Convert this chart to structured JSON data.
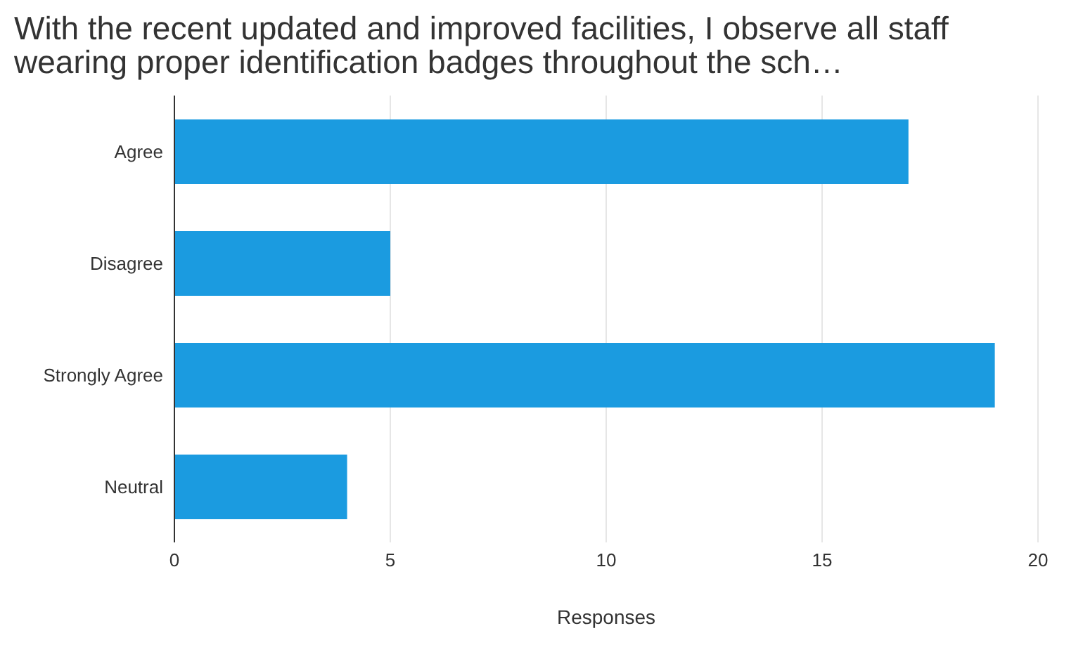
{
  "chart_data": {
    "type": "bar",
    "orientation": "horizontal",
    "title": "With the recent updated and improved facilities, I observe all staff wearing proper identification badges throughout the sch…",
    "xlabel": "Responses",
    "categories": [
      "Agree",
      "Disagree",
      "Strongly Agree",
      "Neutral"
    ],
    "values": [
      17,
      5,
      19,
      4
    ],
    "color": "#1b9be0",
    "xlim": [
      0,
      20
    ],
    "xticks": [
      0,
      5,
      10,
      15,
      20
    ],
    "grid": "x"
  }
}
